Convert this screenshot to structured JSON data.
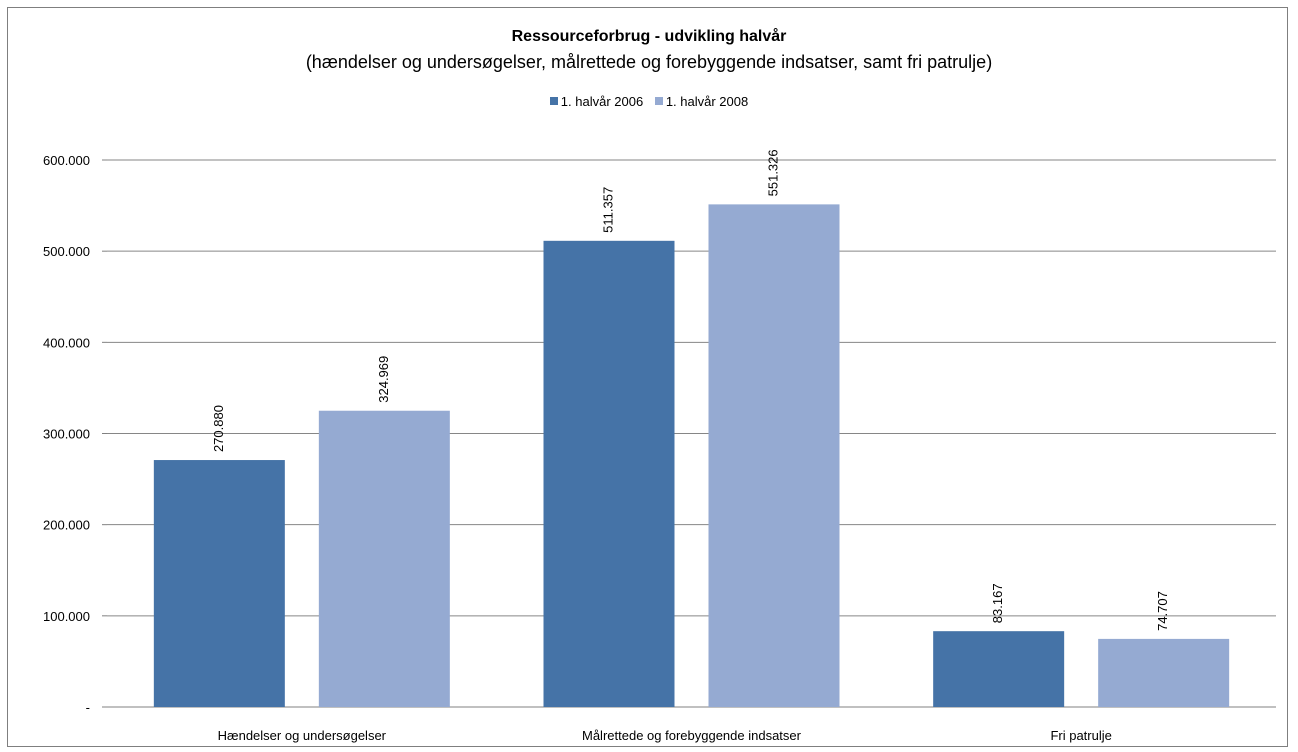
{
  "chart_data": {
    "type": "bar",
    "title": "Ressourceforbrug - udvikling halvår",
    "subtitle": "(hændelser og undersøgelser, målrettede og forebyggende indsatser, samt fri patrulje)",
    "categories": [
      "Hændelser og undersøgelser",
      "Målrettede og forebyggende indsatser",
      "Fri patrulje"
    ],
    "series": [
      {
        "name": "1. halvår 2006",
        "color": "#4573a7",
        "values": [
          270880,
          511357,
          83167
        ],
        "labels": [
          "270.880",
          "511.357",
          "83.167"
        ]
      },
      {
        "name": "1. halvår 2008",
        "color": "#95aad2",
        "values": [
          324969,
          551326,
          74707
        ],
        "labels": [
          "324.969",
          "551.326",
          "74.707"
        ]
      }
    ],
    "ylim": [
      0,
      600000
    ],
    "yticks": [
      0,
      100000,
      200000,
      300000,
      400000,
      500000,
      600000
    ],
    "ytick_labels": [
      "-",
      "100.000",
      "200.000",
      "300.000",
      "400.000",
      "500.000",
      "600.000"
    ],
    "grid": true,
    "legend_position": "top"
  }
}
